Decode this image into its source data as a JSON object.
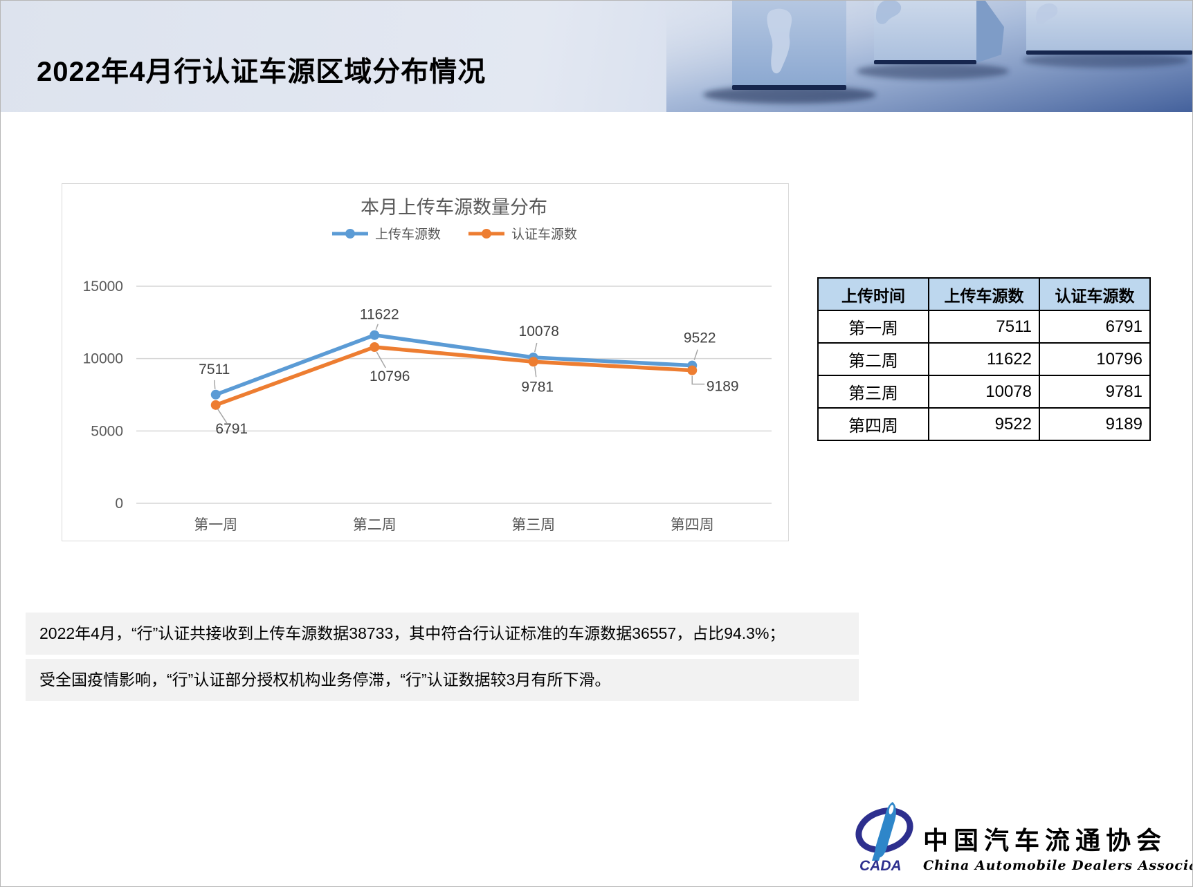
{
  "slide": {
    "title": "2022年4月行认证车源区域分布情况"
  },
  "chart_data": {
    "type": "line",
    "title": "本月上传车源数量分布",
    "categories": [
      "第一周",
      "第二周",
      "第三周",
      "第四周"
    ],
    "series": [
      {
        "name": "上传车源数",
        "color": "#5B9BD5",
        "values": [
          7511,
          11622,
          10078,
          9522
        ]
      },
      {
        "name": "认证车源数",
        "color": "#ED7D31",
        "values": [
          6791,
          10796,
          9781,
          9189
        ]
      }
    ],
    "ylim": [
      0,
      15000
    ],
    "yticks": [
      0,
      5000,
      10000,
      15000
    ],
    "grid": true,
    "legend_position": "top",
    "gridline_color": "#d6d6d6",
    "tick_color": "#595959",
    "label_color": "#404040"
  },
  "table": {
    "headers": [
      "上传时间",
      "上传车源数",
      "认证车源数"
    ],
    "rows": [
      [
        "第一周",
        "7511",
        "6791"
      ],
      [
        "第二周",
        "11622",
        "10796"
      ],
      [
        "第三周",
        "10078",
        "9781"
      ],
      [
        "第四周",
        "9522",
        "9189"
      ]
    ],
    "header_bg": "#BDD7EE"
  },
  "summary": {
    "line1": "2022年4月，“行”认证共接收到上传车源数据38733，其中符合行认证标准的车源数据36557，占比94.3%；",
    "line2": "受全国疫情影响，“行”认证部分授权机构业务停滞，“行”认证数据较3月有所下滑。"
  },
  "logo": {
    "acronym": "CADA",
    "name_cn": "中国汽车流通协会",
    "name_en": "China Automobile Dealers  Association",
    "brand_color": "#2d2f8e",
    "accent_color": "#2e86c9"
  }
}
